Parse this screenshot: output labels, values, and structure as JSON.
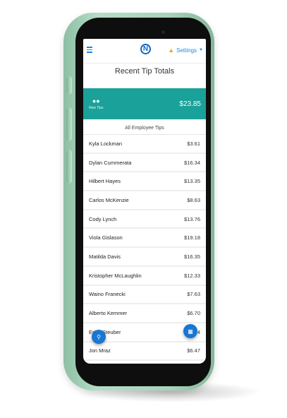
{
  "header": {
    "logo_letter": "N",
    "settings_label": "Settings"
  },
  "page": {
    "title": "Recent Tip Totals"
  },
  "summary": {
    "label": "New Tips",
    "total": "$23.85"
  },
  "list": {
    "heading": "All Employee Tips",
    "rows": [
      {
        "name": "Kyla Lockman",
        "amount": "$3.61"
      },
      {
        "name": "Dylan Cummerata",
        "amount": "$16.34"
      },
      {
        "name": "Hilbert Hayes",
        "amount": "$13.35"
      },
      {
        "name": "Carlos McKenzie",
        "amount": "$8.63"
      },
      {
        "name": "Cody Lynch",
        "amount": "$13.76"
      },
      {
        "name": "Viola Gislason",
        "amount": "$19.18"
      },
      {
        "name": "Matilda Davis",
        "amount": "$16.35"
      },
      {
        "name": "Kristopher McLaughlin",
        "amount": "$12.33"
      },
      {
        "name": "Waino Franecki",
        "amount": "$7.63"
      },
      {
        "name": "Alberto Kemmer",
        "amount": "$6.70"
      },
      {
        "name": "Erica Steuber",
        "amount": "$5.04"
      },
      {
        "name": "Jon Mraz",
        "amount": "$6.47"
      }
    ]
  },
  "icons": {
    "menu": "hamburger-menu-icon",
    "bell": "bell-icon",
    "people": "people-icon",
    "search": "search-icon",
    "calendar": "calendar-icon"
  },
  "colors": {
    "accent": "#1aa199",
    "link": "#1e88e5",
    "fab": "#1976d2",
    "phone_body": "#a9d6bd"
  }
}
